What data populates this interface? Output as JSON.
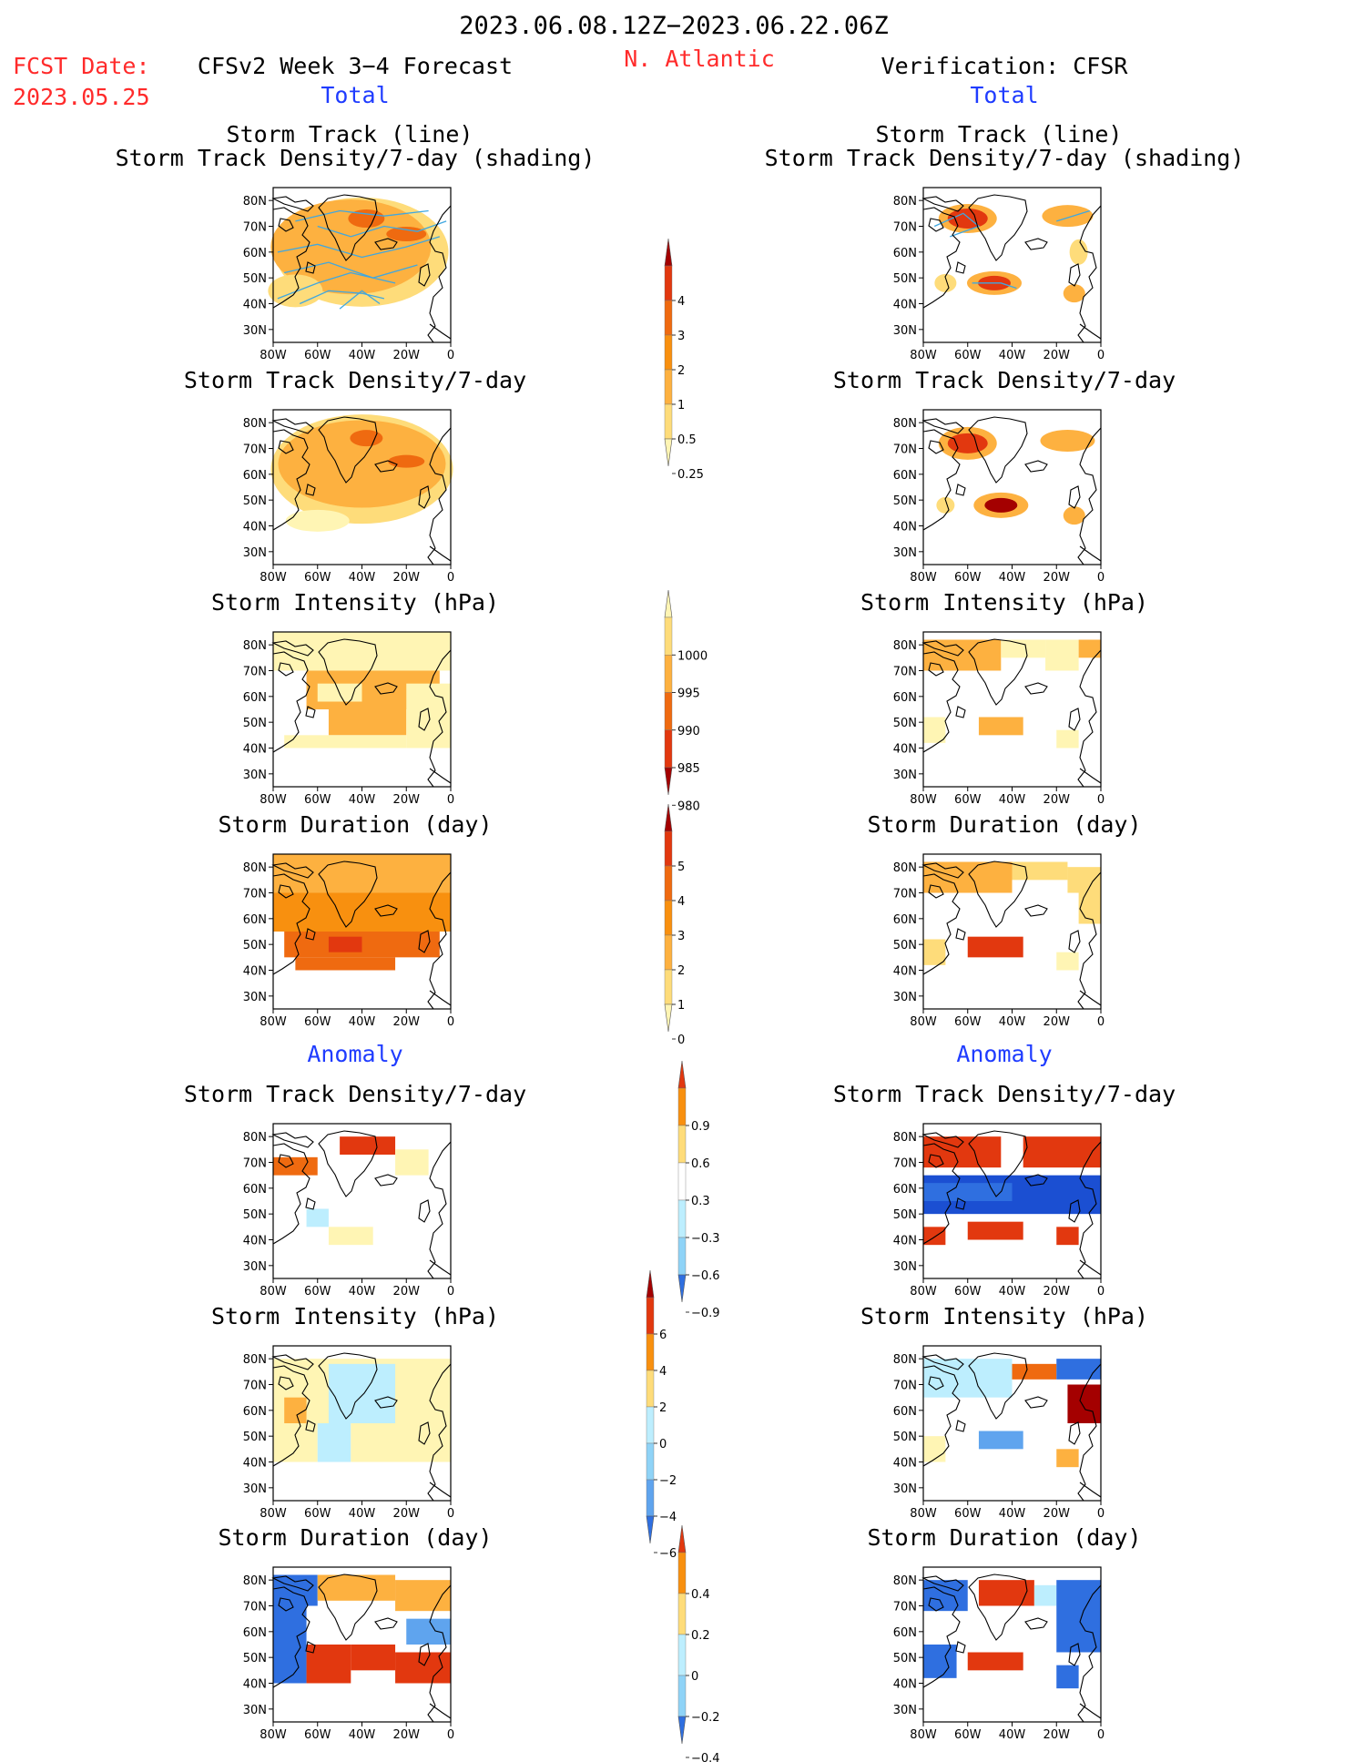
{
  "header": {
    "date_range": "2023.06.08.12Z−2023.06.22.06Z",
    "fcst_label": "FCST Date:",
    "fcst_date": "2023.05.25",
    "model_title": "CFSv2 Week 3−4 Forecast",
    "region": "N. Atlantic",
    "verification": "Verification: CFSR"
  },
  "sections": {
    "total": "Total",
    "anomaly": "Anomaly"
  },
  "axes": {
    "lat": [
      "80N",
      "70N",
      "60N",
      "50N",
      "40N",
      "30N"
    ],
    "lon": [
      "80W",
      "60W",
      "40W",
      "20W",
      "0"
    ]
  },
  "colors": {
    "pos": [
      "#fff5b4",
      "#fedc7a",
      "#fdb140",
      "#f8900f",
      "#ef6a10",
      "#e2380f",
      "#a40000"
    ],
    "neg": [
      "#bdeefe",
      "#8fd3f7",
      "#5fa4ee",
      "#2f6fe0",
      "#1b4fd2"
    ],
    "track": "#3fa7e0",
    "coast": "#000000"
  },
  "rows": [
    {
      "id": "track",
      "title_line1": "Storm Track (line)",
      "title_line2": "Storm Track Density/7-day (shading)"
    },
    {
      "id": "density",
      "title": "Storm Track Density/7-day"
    },
    {
      "id": "intensity",
      "title": "Storm Intensity (hPa)"
    },
    {
      "id": "duration",
      "title": "Storm Duration (day)"
    },
    {
      "id": "anom_density",
      "title": "Storm Track Density/7-day"
    },
    {
      "id": "anom_intensity",
      "title": "Storm Intensity (hPa)"
    },
    {
      "id": "anom_duration",
      "title": "Storm Duration (day)"
    }
  ],
  "colorbars": [
    {
      "id": "cb_density",
      "labels": [
        "4",
        "3",
        "2",
        "1",
        "0.5",
        "0.25"
      ]
    },
    {
      "id": "cb_intensity",
      "labels": [
        "1000",
        "995",
        "990",
        "985",
        "980"
      ]
    },
    {
      "id": "cb_duration",
      "labels": [
        "5",
        "4",
        "3",
        "2",
        "1",
        "0"
      ]
    },
    {
      "id": "cb_anom_density",
      "labels": [
        "0.9",
        "0.6",
        "0.3",
        "−0.3",
        "−0.6",
        "−0.9"
      ]
    },
    {
      "id": "cb_anom_intensity",
      "labels": [
        "6",
        "4",
        "2",
        "0",
        "−2",
        "−4",
        "−6"
      ]
    },
    {
      "id": "cb_anom_duration",
      "labels": [
        "0.4",
        "0.2",
        "0",
        "−0.2",
        "−0.4"
      ]
    }
  ]
}
